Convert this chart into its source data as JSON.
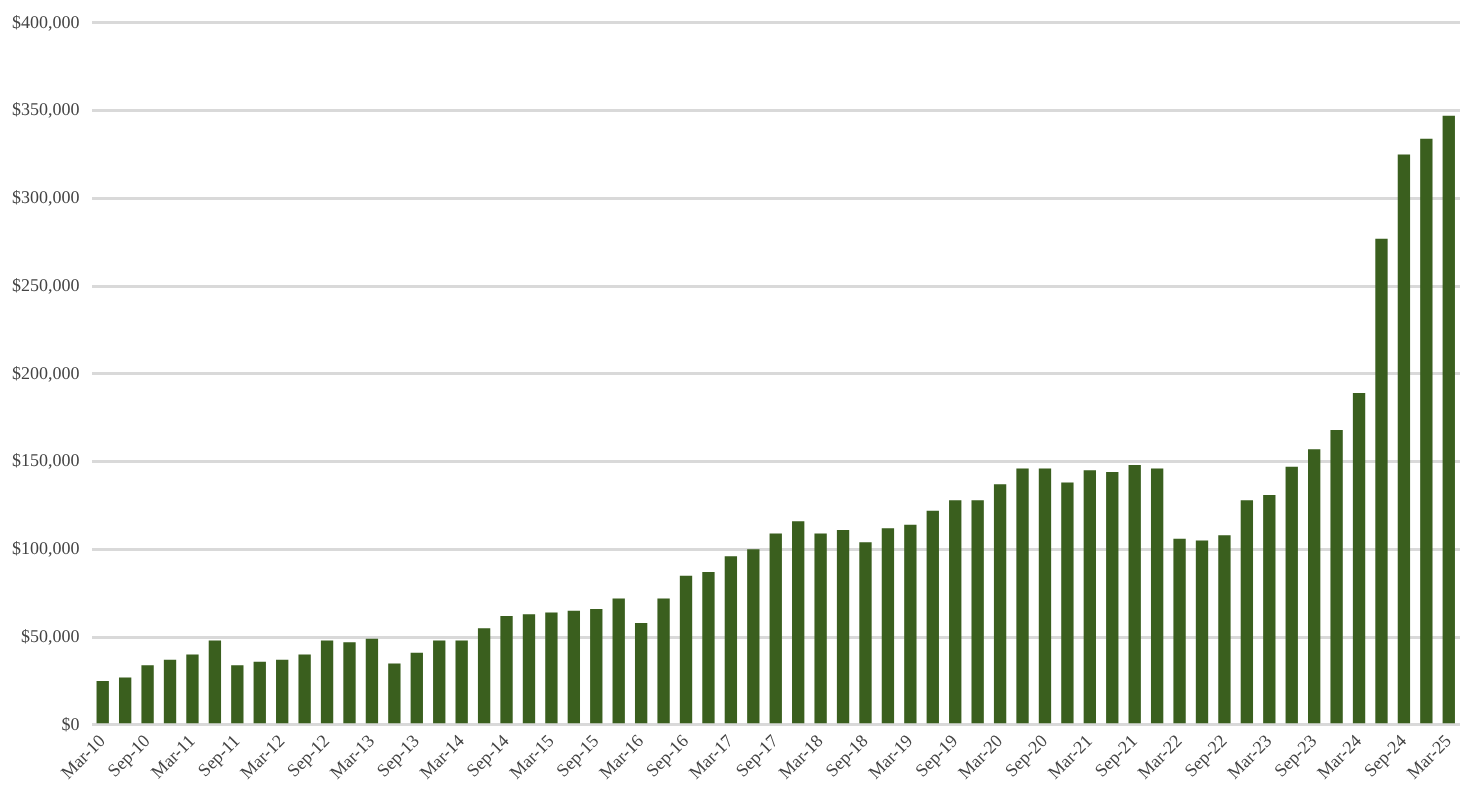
{
  "chart_data": {
    "type": "bar",
    "categories": [
      "Mar-10",
      null,
      "Sep-10",
      null,
      "Mar-11",
      null,
      "Sep-11",
      null,
      "Mar-12",
      null,
      "Sep-12",
      null,
      "Mar-13",
      null,
      "Sep-13",
      null,
      "Mar-14",
      null,
      "Sep-14",
      null,
      "Mar-15",
      null,
      "Sep-15",
      null,
      "Mar-16",
      null,
      "Sep-16",
      null,
      "Mar-17",
      null,
      "Sep-17",
      null,
      "Mar-18",
      null,
      "Sep-18",
      null,
      "Mar-19",
      null,
      "Sep-19",
      null,
      "Mar-20",
      null,
      "Sep-20",
      null,
      "Mar-21",
      null,
      "Sep-21",
      null,
      "Mar-22",
      null,
      "Sep-22",
      null,
      "Mar-23",
      null,
      "Sep-23",
      null,
      "Mar-24",
      null,
      "Sep-24",
      null,
      "Mar-25"
    ],
    "values": [
      25000,
      27000,
      34000,
      37000,
      40000,
      48000,
      34000,
      36000,
      37000,
      40000,
      48000,
      47000,
      49000,
      35000,
      41000,
      48000,
      48000,
      55000,
      62000,
      63000,
      64000,
      65000,
      66000,
      72000,
      58000,
      72000,
      85000,
      87000,
      96000,
      100000,
      109000,
      116000,
      109000,
      111000,
      104000,
      112000,
      114000,
      122000,
      128000,
      128000,
      137000,
      146000,
      146000,
      138000,
      145000,
      144000,
      148000,
      146000,
      106000,
      105000,
      108000,
      128000,
      131000,
      147000,
      157000,
      168000,
      189000,
      277000,
      325000,
      334000,
      347000
    ],
    "color": "#3a5f1e",
    "ylim": [
      0,
      400000
    ],
    "yticks": [
      {
        "value": 0,
        "label": "$0"
      },
      {
        "value": 50000,
        "label": "$50,000"
      },
      {
        "value": 100000,
        "label": "$100,000"
      },
      {
        "value": 150000,
        "label": "$150,000"
      },
      {
        "value": 200000,
        "label": "$200,000"
      },
      {
        "value": 250000,
        "label": "$250,000"
      },
      {
        "value": 300000,
        "label": "$300,000"
      },
      {
        "value": 350000,
        "label": "$350,000"
      },
      {
        "value": 400000,
        "label": "$400,000"
      }
    ],
    "grid": "y"
  }
}
